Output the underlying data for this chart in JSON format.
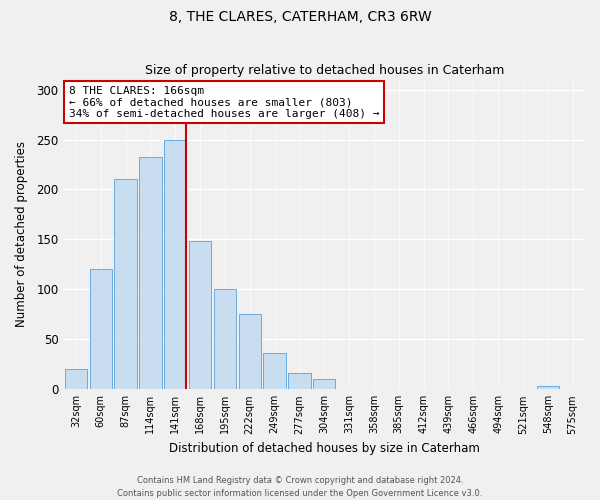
{
  "title": "8, THE CLARES, CATERHAM, CR3 6RW",
  "subtitle": "Size of property relative to detached houses in Caterham",
  "xlabel": "Distribution of detached houses by size in Caterham",
  "ylabel": "Number of detached properties",
  "bin_labels": [
    "32sqm",
    "60sqm",
    "87sqm",
    "114sqm",
    "141sqm",
    "168sqm",
    "195sqm",
    "222sqm",
    "249sqm",
    "277sqm",
    "304sqm",
    "331sqm",
    "358sqm",
    "385sqm",
    "412sqm",
    "439sqm",
    "466sqm",
    "494sqm",
    "521sqm",
    "548sqm",
    "575sqm"
  ],
  "bar_heights": [
    20,
    120,
    210,
    232,
    250,
    148,
    100,
    75,
    36,
    16,
    10,
    0,
    0,
    0,
    0,
    0,
    0,
    0,
    0,
    3,
    0
  ],
  "bar_color": "#c8ddf0",
  "bar_edge_color": "#6aabe0",
  "vline_color": "#cc0000",
  "annotation_title": "8 THE CLARES: 166sqm",
  "annotation_line1": "← 66% of detached houses are smaller (803)",
  "annotation_line2": "34% of semi-detached houses are larger (408) →",
  "annotation_box_color": "#ffffff",
  "annotation_box_edge": "#cc0000",
  "ylim": [
    0,
    310
  ],
  "yticks": [
    0,
    50,
    100,
    150,
    200,
    250,
    300
  ],
  "footer1": "Contains HM Land Registry data © Crown copyright and database right 2024.",
  "footer2": "Contains public sector information licensed under the Open Government Licence v3.0."
}
